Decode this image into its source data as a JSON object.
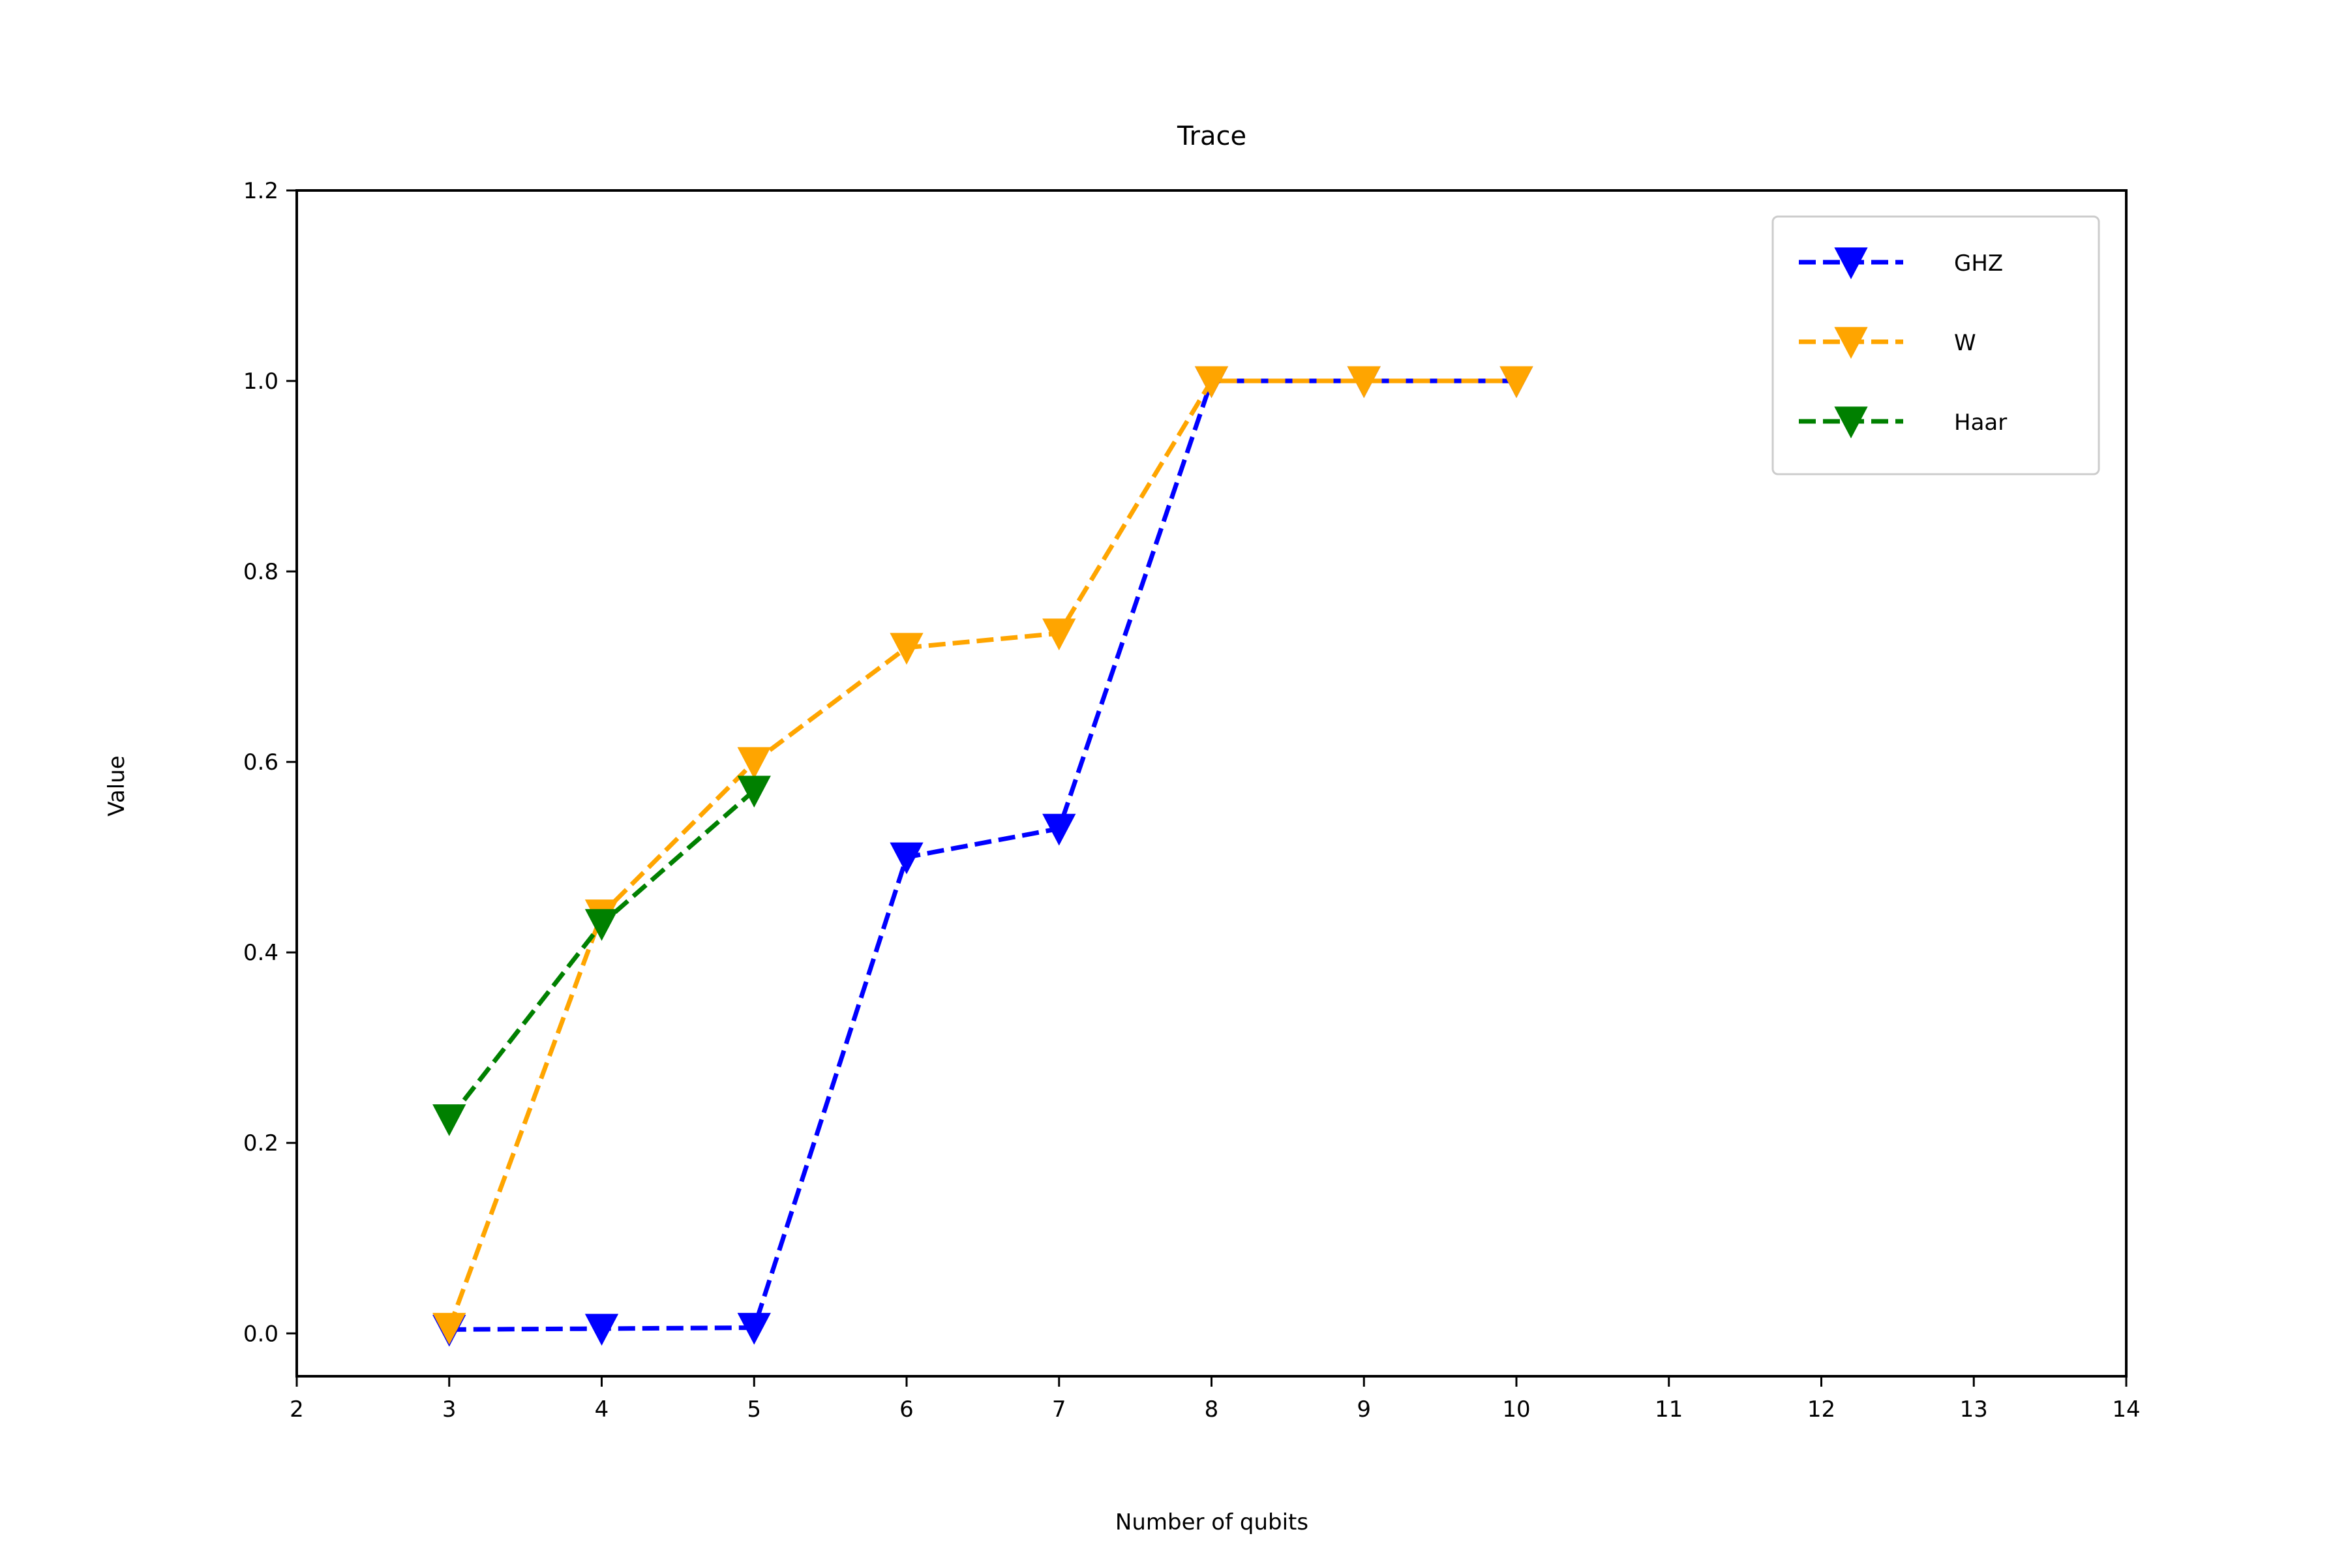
{
  "chart_data": {
    "type": "line",
    "title": "Trace",
    "xlabel": "Number of qubits",
    "ylabel": "Value",
    "xlim": [
      2,
      14
    ],
    "ylim": [
      -0.045,
      1.2
    ],
    "xticks": [
      2,
      3,
      4,
      5,
      6,
      7,
      8,
      9,
      10,
      11,
      12,
      13,
      14
    ],
    "yticks": [
      0.0,
      0.2,
      0.4,
      0.6,
      0.8,
      1.0,
      1.2
    ],
    "ytick_labels": [
      "0.0",
      "0.2",
      "0.4",
      "0.6",
      "0.8",
      "1.0",
      "1.2"
    ],
    "grid": false,
    "legend_position": "upper right",
    "marker": "triangle-down",
    "line_style": "dashed",
    "series": [
      {
        "name": "GHZ",
        "color": "#0000ff",
        "x": [
          3,
          4,
          5,
          6,
          7,
          8,
          9,
          10
        ],
        "y": [
          0.004,
          0.005,
          0.006,
          0.5,
          0.53,
          1.0,
          1.0,
          1.0
        ]
      },
      {
        "name": "W",
        "color": "#ffa500",
        "x": [
          3,
          4,
          5,
          6,
          7,
          8,
          9,
          10
        ],
        "y": [
          0.006,
          0.44,
          0.6,
          0.72,
          0.735,
          1.0,
          1.0,
          1.0
        ]
      },
      {
        "name": "Haar",
        "color": "#008000",
        "x": [
          3,
          4,
          5
        ],
        "y": [
          0.225,
          0.43,
          0.57
        ]
      }
    ]
  }
}
